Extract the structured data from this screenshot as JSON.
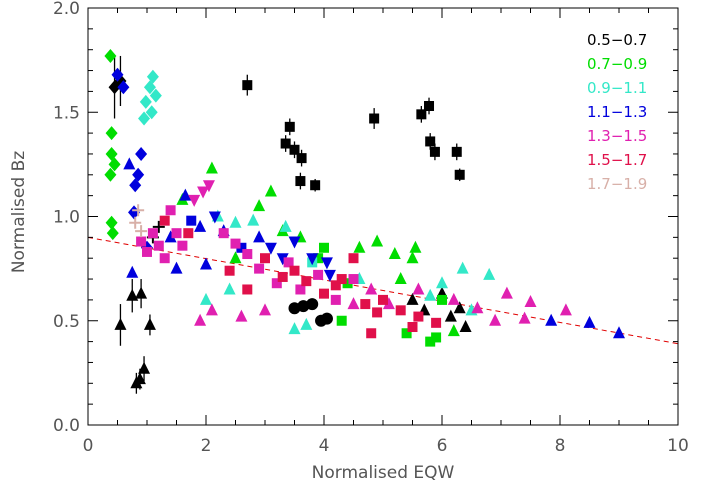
{
  "chart_data": {
    "type": "scatter",
    "xlabel": "Normalised EQW",
    "ylabel": "Normalised Bz",
    "xlim": [
      0,
      10
    ],
    "ylim": [
      0,
      2
    ],
    "x_ticks": [
      0,
      2,
      4,
      6,
      8,
      10
    ],
    "y_ticks": [
      0.0,
      0.5,
      1.0,
      1.5,
      2.0
    ],
    "x_tick_labels": [
      "0",
      "2",
      "4",
      "6",
      "8",
      "10"
    ],
    "y_tick_labels": [
      "0.0",
      "0.5",
      "1.0",
      "1.5",
      "2.0"
    ],
    "grid": false,
    "legend_position": "top-right",
    "legend": [
      {
        "label": "0.5−0.7",
        "color": "#000000"
      },
      {
        "label": "0.7−0.9",
        "color": "#00dd00"
      },
      {
        "label": "0.9−1.1",
        "color": "#33e8c8"
      },
      {
        "label": "1.1−1.3",
        "color": "#0000dd"
      },
      {
        "label": "1.3−1.5",
        "color": "#e020b0"
      },
      {
        "label": "1.5−1.7",
        "color": "#e0104a"
      },
      {
        "label": "1.7−1.9",
        "color": "#d8b0a8"
      }
    ],
    "trend_line": {
      "x": [
        0,
        10
      ],
      "y": [
        0.9,
        0.39
      ],
      "color": "#e00000",
      "style": "dashed"
    },
    "series": [
      {
        "color": "#000000",
        "points": [
          {
            "x": 0.45,
            "y": 1.62,
            "m": "diamond",
            "err": 0.15
          },
          {
            "x": 0.55,
            "y": 1.65,
            "m": "diamond",
            "err": 0.12
          },
          {
            "x": 0.75,
            "y": 0.62,
            "m": "triangle",
            "err": 0.08
          },
          {
            "x": 0.82,
            "y": 0.2,
            "m": "triangle",
            "err": 0.05
          },
          {
            "x": 0.88,
            "y": 0.22,
            "m": "triangle",
            "err": 0.05
          },
          {
            "x": 0.95,
            "y": 0.27,
            "m": "triangle",
            "err": 0.06
          },
          {
            "x": 0.55,
            "y": 0.48,
            "m": "triangle",
            "err": 0.1
          },
          {
            "x": 0.9,
            "y": 0.63,
            "m": "triangle",
            "err": 0.07
          },
          {
            "x": 1.05,
            "y": 0.48,
            "m": "triangle",
            "err": 0.05
          },
          {
            "x": 1.1,
            "y": 0.9,
            "m": "cross"
          },
          {
            "x": 1.2,
            "y": 0.95,
            "m": "cross"
          },
          {
            "x": 2.7,
            "y": 1.63,
            "m": "square",
            "err": 0.05
          },
          {
            "x": 3.35,
            "y": 1.35,
            "m": "square",
            "err": 0.04
          },
          {
            "x": 3.42,
            "y": 1.43,
            "m": "square",
            "err": 0.04
          },
          {
            "x": 3.5,
            "y": 1.32,
            "m": "square",
            "err": 0.04
          },
          {
            "x": 3.62,
            "y": 1.28,
            "m": "square",
            "err": 0.04
          },
          {
            "x": 3.6,
            "y": 1.17,
            "m": "square",
            "err": 0.04
          },
          {
            "x": 3.85,
            "y": 1.15,
            "m": "square",
            "err": 0.03
          },
          {
            "x": 4.85,
            "y": 1.47,
            "m": "square",
            "err": 0.05
          },
          {
            "x": 5.65,
            "y": 1.49,
            "m": "square",
            "err": 0.04
          },
          {
            "x": 5.78,
            "y": 1.53,
            "m": "square",
            "err": 0.04
          },
          {
            "x": 5.8,
            "y": 1.36,
            "m": "square",
            "err": 0.04
          },
          {
            "x": 5.88,
            "y": 1.31,
            "m": "square",
            "err": 0.04
          },
          {
            "x": 6.25,
            "y": 1.31,
            "m": "square",
            "err": 0.04
          },
          {
            "x": 6.3,
            "y": 1.2,
            "m": "square",
            "err": 0.03
          },
          {
            "x": 3.5,
            "y": 0.56,
            "m": "circle"
          },
          {
            "x": 3.65,
            "y": 0.57,
            "m": "circle"
          },
          {
            "x": 3.8,
            "y": 0.58,
            "m": "circle"
          },
          {
            "x": 3.95,
            "y": 0.5,
            "m": "circle"
          },
          {
            "x": 4.05,
            "y": 0.51,
            "m": "circle"
          },
          {
            "x": 5.5,
            "y": 0.6,
            "m": "triangle"
          },
          {
            "x": 5.7,
            "y": 0.55,
            "m": "triangle"
          },
          {
            "x": 6.0,
            "y": 0.63,
            "m": "triangle"
          },
          {
            "x": 6.15,
            "y": 0.52,
            "m": "triangle"
          },
          {
            "x": 6.3,
            "y": 0.56,
            "m": "triangle"
          },
          {
            "x": 6.4,
            "y": 0.47,
            "m": "triangle"
          }
        ]
      },
      {
        "color": "#00dd00",
        "points": [
          {
            "x": 0.38,
            "y": 1.77,
            "m": "diamond"
          },
          {
            "x": 0.4,
            "y": 1.4,
            "m": "diamond"
          },
          {
            "x": 0.4,
            "y": 1.3,
            "m": "diamond"
          },
          {
            "x": 0.38,
            "y": 1.2,
            "m": "diamond"
          },
          {
            "x": 0.4,
            "y": 0.97,
            "m": "diamond"
          },
          {
            "x": 0.42,
            "y": 0.92,
            "m": "diamond"
          },
          {
            "x": 0.45,
            "y": 1.25,
            "m": "diamond"
          },
          {
            "x": 2.1,
            "y": 1.23,
            "m": "triangle"
          },
          {
            "x": 1.6,
            "y": 1.08,
            "m": "triangle"
          },
          {
            "x": 2.5,
            "y": 0.8,
            "m": "triangle"
          },
          {
            "x": 3.3,
            "y": 0.93,
            "m": "triangle"
          },
          {
            "x": 3.6,
            "y": 0.9,
            "m": "triangle"
          },
          {
            "x": 3.9,
            "y": 0.8,
            "m": "square"
          },
          {
            "x": 4.0,
            "y": 0.85,
            "m": "square"
          },
          {
            "x": 4.4,
            "y": 0.68,
            "m": "square"
          },
          {
            "x": 4.3,
            "y": 0.5,
            "m": "square"
          },
          {
            "x": 4.6,
            "y": 0.85,
            "m": "triangle"
          },
          {
            "x": 4.9,
            "y": 0.88,
            "m": "triangle"
          },
          {
            "x": 5.2,
            "y": 0.82,
            "m": "triangle"
          },
          {
            "x": 5.5,
            "y": 0.8,
            "m": "triangle"
          },
          {
            "x": 5.3,
            "y": 0.7,
            "m": "triangle"
          },
          {
            "x": 5.4,
            "y": 0.44,
            "m": "square"
          },
          {
            "x": 5.8,
            "y": 0.4,
            "m": "square"
          },
          {
            "x": 5.9,
            "y": 0.42,
            "m": "square"
          },
          {
            "x": 6.2,
            "y": 0.45,
            "m": "triangle"
          },
          {
            "x": 6.0,
            "y": 0.6,
            "m": "square"
          },
          {
            "x": 5.55,
            "y": 0.85,
            "m": "triangle"
          },
          {
            "x": 2.9,
            "y": 1.05,
            "m": "triangle"
          },
          {
            "x": 3.1,
            "y": 1.12,
            "m": "triangle"
          }
        ]
      },
      {
        "color": "#33e8c8",
        "points": [
          {
            "x": 0.98,
            "y": 1.55,
            "m": "diamond"
          },
          {
            "x": 1.05,
            "y": 1.62,
            "m": "diamond"
          },
          {
            "x": 1.1,
            "y": 1.67,
            "m": "diamond"
          },
          {
            "x": 1.15,
            "y": 1.58,
            "m": "diamond"
          },
          {
            "x": 0.95,
            "y": 1.47,
            "m": "diamond"
          },
          {
            "x": 1.08,
            "y": 1.5,
            "m": "diamond"
          },
          {
            "x": 2.2,
            "y": 1.0,
            "m": "triangle"
          },
          {
            "x": 2.5,
            "y": 0.97,
            "m": "triangle"
          },
          {
            "x": 2.8,
            "y": 0.98,
            "m": "triangle"
          },
          {
            "x": 3.35,
            "y": 0.95,
            "m": "triangle"
          },
          {
            "x": 3.5,
            "y": 0.46,
            "m": "triangle"
          },
          {
            "x": 3.7,
            "y": 0.48,
            "m": "triangle"
          },
          {
            "x": 3.8,
            "y": 0.78,
            "m": "square"
          },
          {
            "x": 4.6,
            "y": 0.7,
            "m": "triangle"
          },
          {
            "x": 5.8,
            "y": 0.62,
            "m": "triangle"
          },
          {
            "x": 6.0,
            "y": 0.68,
            "m": "triangle"
          },
          {
            "x": 6.35,
            "y": 0.75,
            "m": "triangle"
          },
          {
            "x": 6.8,
            "y": 0.72,
            "m": "triangle"
          },
          {
            "x": 6.5,
            "y": 0.55,
            "m": "triangle"
          },
          {
            "x": 2.0,
            "y": 0.6,
            "m": "triangle"
          },
          {
            "x": 2.4,
            "y": 0.65,
            "m": "triangle"
          }
        ]
      },
      {
        "color": "#0000dd",
        "points": [
          {
            "x": 0.5,
            "y": 1.68,
            "m": "diamond"
          },
          {
            "x": 0.6,
            "y": 1.62,
            "m": "diamond"
          },
          {
            "x": 0.7,
            "y": 1.25,
            "m": "triangle"
          },
          {
            "x": 0.75,
            "y": 0.73,
            "m": "triangle"
          },
          {
            "x": 0.78,
            "y": 1.02,
            "m": "diamond"
          },
          {
            "x": 0.8,
            "y": 1.15,
            "m": "diamond"
          },
          {
            "x": 0.85,
            "y": 1.2,
            "m": "diamond"
          },
          {
            "x": 0.9,
            "y": 1.3,
            "m": "diamond"
          },
          {
            "x": 1.0,
            "y": 0.85,
            "m": "diamond"
          },
          {
            "x": 1.4,
            "y": 0.9,
            "m": "triangle"
          },
          {
            "x": 1.9,
            "y": 0.95,
            "m": "triangle"
          },
          {
            "x": 2.3,
            "y": 0.93,
            "m": "triangle"
          },
          {
            "x": 2.0,
            "y": 0.77,
            "m": "triangle"
          },
          {
            "x": 2.6,
            "y": 0.85,
            "m": "square"
          },
          {
            "x": 2.9,
            "y": 0.9,
            "m": "triangle"
          },
          {
            "x": 3.1,
            "y": 0.85,
            "m": "invtriangle"
          },
          {
            "x": 3.3,
            "y": 0.8,
            "m": "invtriangle"
          },
          {
            "x": 3.5,
            "y": 0.88,
            "m": "invtriangle"
          },
          {
            "x": 3.8,
            "y": 0.8,
            "m": "invtriangle"
          },
          {
            "x": 4.05,
            "y": 0.78,
            "m": "invtriangle"
          },
          {
            "x": 4.1,
            "y": 0.72,
            "m": "invtriangle"
          },
          {
            "x": 1.5,
            "y": 0.75,
            "m": "triangle"
          },
          {
            "x": 7.85,
            "y": 0.5,
            "m": "triangle"
          },
          {
            "x": 8.5,
            "y": 0.49,
            "m": "triangle"
          },
          {
            "x": 9.0,
            "y": 0.44,
            "m": "triangle"
          },
          {
            "x": 1.65,
            "y": 1.1,
            "m": "triangle"
          },
          {
            "x": 1.75,
            "y": 0.98,
            "m": "square"
          },
          {
            "x": 2.15,
            "y": 1.0,
            "m": "invtriangle"
          }
        ]
      },
      {
        "color": "#e020b0",
        "points": [
          {
            "x": 0.9,
            "y": 0.88,
            "m": "square"
          },
          {
            "x": 1.0,
            "y": 0.83,
            "m": "square"
          },
          {
            "x": 1.1,
            "y": 0.92,
            "m": "square"
          },
          {
            "x": 1.2,
            "y": 0.86,
            "m": "square"
          },
          {
            "x": 1.3,
            "y": 0.8,
            "m": "square"
          },
          {
            "x": 1.4,
            "y": 1.03,
            "m": "square"
          },
          {
            "x": 1.5,
            "y": 0.92,
            "m": "square"
          },
          {
            "x": 1.6,
            "y": 0.86,
            "m": "square"
          },
          {
            "x": 1.8,
            "y": 1.08,
            "m": "invtriangle"
          },
          {
            "x": 1.95,
            "y": 1.12,
            "m": "invtriangle"
          },
          {
            "x": 2.05,
            "y": 1.15,
            "m": "invtriangle"
          },
          {
            "x": 2.3,
            "y": 0.92,
            "m": "square"
          },
          {
            "x": 2.5,
            "y": 0.87,
            "m": "square"
          },
          {
            "x": 2.7,
            "y": 0.82,
            "m": "square"
          },
          {
            "x": 2.9,
            "y": 0.75,
            "m": "square"
          },
          {
            "x": 3.2,
            "y": 0.68,
            "m": "square"
          },
          {
            "x": 3.4,
            "y": 0.78,
            "m": "square"
          },
          {
            "x": 3.6,
            "y": 0.65,
            "m": "square"
          },
          {
            "x": 3.9,
            "y": 0.72,
            "m": "square"
          },
          {
            "x": 4.2,
            "y": 0.6,
            "m": "square"
          },
          {
            "x": 4.5,
            "y": 0.7,
            "m": "square"
          },
          {
            "x": 4.8,
            "y": 0.65,
            "m": "triangle"
          },
          {
            "x": 5.1,
            "y": 0.58,
            "m": "triangle"
          },
          {
            "x": 5.6,
            "y": 0.65,
            "m": "triangle"
          },
          {
            "x": 6.2,
            "y": 0.6,
            "m": "triangle"
          },
          {
            "x": 6.6,
            "y": 0.56,
            "m": "triangle"
          },
          {
            "x": 7.1,
            "y": 0.63,
            "m": "triangle"
          },
          {
            "x": 7.5,
            "y": 0.59,
            "m": "triangle"
          },
          {
            "x": 7.4,
            "y": 0.51,
            "m": "triangle"
          },
          {
            "x": 8.1,
            "y": 0.55,
            "m": "triangle"
          },
          {
            "x": 2.1,
            "y": 0.55,
            "m": "triangle"
          },
          {
            "x": 2.6,
            "y": 0.52,
            "m": "triangle"
          },
          {
            "x": 3.0,
            "y": 0.55,
            "m": "triangle"
          },
          {
            "x": 1.9,
            "y": 0.5,
            "m": "triangle"
          },
          {
            "x": 4.5,
            "y": 0.58,
            "m": "triangle"
          },
          {
            "x": 6.9,
            "y": 0.5,
            "m": "triangle"
          }
        ]
      },
      {
        "color": "#e0104a",
        "points": [
          {
            "x": 1.3,
            "y": 0.98,
            "m": "square"
          },
          {
            "x": 1.7,
            "y": 0.92,
            "m": "square"
          },
          {
            "x": 2.4,
            "y": 0.74,
            "m": "square"
          },
          {
            "x": 2.7,
            "y": 0.65,
            "m": "square"
          },
          {
            "x": 3.0,
            "y": 0.8,
            "m": "square"
          },
          {
            "x": 3.3,
            "y": 0.71,
            "m": "square"
          },
          {
            "x": 3.7,
            "y": 0.69,
            "m": "square"
          },
          {
            "x": 4.0,
            "y": 0.63,
            "m": "square"
          },
          {
            "x": 4.3,
            "y": 0.7,
            "m": "square"
          },
          {
            "x": 4.5,
            "y": 0.8,
            "m": "square"
          },
          {
            "x": 4.7,
            "y": 0.58,
            "m": "square"
          },
          {
            "x": 4.9,
            "y": 0.54,
            "m": "square"
          },
          {
            "x": 5.0,
            "y": 0.6,
            "m": "square"
          },
          {
            "x": 5.3,
            "y": 0.55,
            "m": "square"
          },
          {
            "x": 5.6,
            "y": 0.52,
            "m": "square"
          },
          {
            "x": 5.9,
            "y": 0.49,
            "m": "square"
          },
          {
            "x": 4.8,
            "y": 0.44,
            "m": "square"
          },
          {
            "x": 5.5,
            "y": 0.47,
            "m": "square"
          },
          {
            "x": 4.2,
            "y": 0.67,
            "m": "square"
          },
          {
            "x": 3.5,
            "y": 0.74,
            "m": "square"
          }
        ]
      },
      {
        "color": "#d8b0a8",
        "points": [
          {
            "x": 0.8,
            "y": 0.97,
            "m": "cross"
          },
          {
            "x": 0.85,
            "y": 1.03,
            "m": "cross"
          },
          {
            "x": 0.9,
            "y": 0.93,
            "m": "cross"
          }
        ]
      }
    ]
  }
}
